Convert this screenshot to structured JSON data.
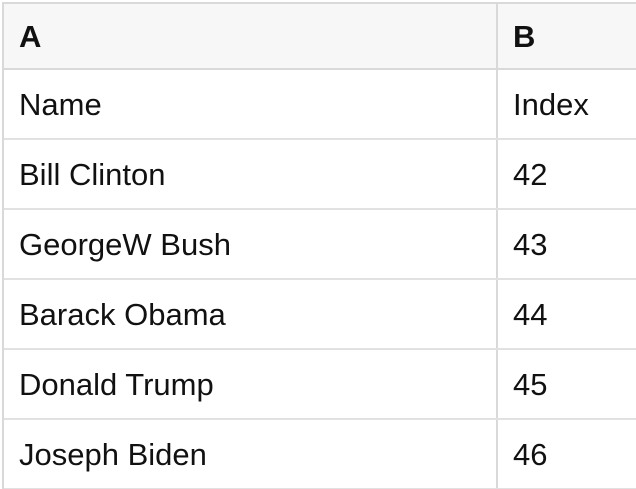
{
  "colors": {
    "page_bg": "#ffffff",
    "cell_bg": "#ffffff",
    "header_bg": "#f7f7f7",
    "grid_line": "#d9d9d9",
    "row_line": "#e1e1e1",
    "text": "#111111"
  },
  "table": {
    "column_headers": [
      {
        "label": "A"
      },
      {
        "label": "B"
      }
    ],
    "rows": [
      {
        "a": "Name",
        "b": "Index"
      },
      {
        "a": "Bill Clinton",
        "b": 42
      },
      {
        "a": "GeorgeW Bush",
        "b": 43
      },
      {
        "a": "Barack Obama",
        "b": 44
      },
      {
        "a": "Donald Trump",
        "b": 45
      },
      {
        "a": "Joseph Biden",
        "b": 46
      }
    ]
  }
}
